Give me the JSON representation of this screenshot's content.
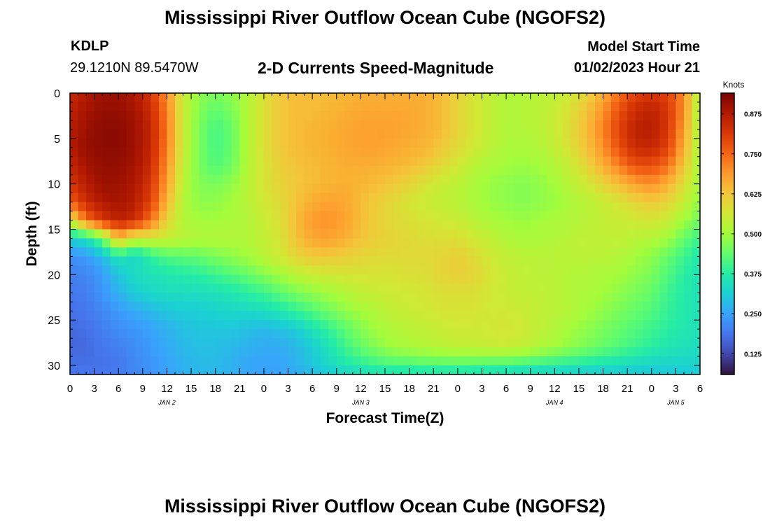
{
  "header": {
    "title": "Mississippi River Outflow Ocean Cube (NGOFS2)",
    "station_name": "KDLP",
    "station_coords": "29.1210N  89.5470W",
    "model_start_label": "Model Start Time",
    "model_start_value": "01/02/2023 Hour 21"
  },
  "footer": {
    "title": "Mississippi River Outflow Ocean Cube (NGOFS2)"
  },
  "chart_data": {
    "type": "heatmap",
    "title": "2-D Currents Speed-Magnitude",
    "xlabel": "Forecast Time(Z)",
    "ylabel": "Depth (ft)",
    "x_unit": "hours since Jan 2 00Z",
    "xlim": [
      0,
      78
    ],
    "ylim": [
      31,
      0
    ],
    "x_tick_values": [
      0,
      3,
      6,
      9,
      12,
      15,
      18,
      21,
      24,
      27,
      30,
      33,
      36,
      39,
      42,
      45,
      48,
      51,
      54,
      57,
      60,
      63,
      66,
      69,
      72,
      75,
      78
    ],
    "x_tick_labels": [
      "0",
      "3",
      "6",
      "9",
      "12",
      "15",
      "18",
      "21",
      "0",
      "3",
      "6",
      "9",
      "12",
      "15",
      "18",
      "21",
      "0",
      "3",
      "6",
      "9",
      "12",
      "15",
      "18",
      "21",
      "0",
      "3",
      "6"
    ],
    "y_ticks": [
      0,
      5,
      10,
      15,
      20,
      25,
      30
    ],
    "day_labels": [
      {
        "x": 12,
        "label": "JAN 2"
      },
      {
        "x": 36,
        "label": "JAN 3"
      },
      {
        "x": 60,
        "label": "JAN 4"
      },
      {
        "x": 75,
        "label": "JAN 5"
      }
    ],
    "colorbar": {
      "label": "Knots",
      "range": [
        0.06,
        0.94
      ],
      "ticks": [
        0.125,
        0.25,
        0.375,
        0.5,
        0.625,
        0.75,
        0.875
      ],
      "tick_labels": [
        "0.125",
        "0.250",
        "0.375",
        "0.500",
        "0.625",
        "0.750",
        "0.875"
      ],
      "colormap": [
        "#30123b",
        "#4145ab",
        "#4675ed",
        "#39a2fc",
        "#1bcfd4",
        "#24eca6",
        "#61fc6c",
        "#a4fc3b",
        "#d1e834",
        "#f3c63a",
        "#fe9b2d",
        "#f36315",
        "#d93806",
        "#b11901",
        "#7a0402"
      ]
    },
    "grid_x": [
      0,
      2,
      4,
      6,
      8,
      10,
      12,
      14,
      16,
      18,
      20,
      22,
      24,
      26,
      28,
      30,
      32,
      34,
      36,
      38,
      40,
      42,
      44,
      46,
      48,
      50,
      52,
      54,
      56,
      58,
      60,
      62,
      64,
      66,
      68,
      70,
      72,
      74,
      76,
      78
    ],
    "grid_depth": [
      0,
      2,
      4,
      6,
      8,
      10,
      12,
      14,
      16,
      18,
      20,
      22,
      24,
      26,
      28,
      30,
      31
    ],
    "speed_knots": [
      [
        0.84,
        0.88,
        0.9,
        0.9,
        0.88,
        0.82,
        0.7,
        0.55,
        0.48,
        0.46,
        0.48,
        0.52,
        0.58,
        0.62,
        0.64,
        0.64,
        0.64,
        0.65,
        0.66,
        0.66,
        0.66,
        0.66,
        0.66,
        0.64,
        0.6,
        0.57,
        0.54,
        0.52,
        0.52,
        0.53,
        0.54,
        0.56,
        0.6,
        0.66,
        0.74,
        0.8,
        0.82,
        0.8,
        0.7,
        0.5
      ],
      [
        0.86,
        0.89,
        0.91,
        0.91,
        0.89,
        0.84,
        0.72,
        0.55,
        0.47,
        0.43,
        0.46,
        0.52,
        0.58,
        0.62,
        0.64,
        0.64,
        0.65,
        0.66,
        0.67,
        0.67,
        0.67,
        0.67,
        0.66,
        0.64,
        0.6,
        0.57,
        0.54,
        0.52,
        0.52,
        0.53,
        0.55,
        0.58,
        0.63,
        0.7,
        0.78,
        0.84,
        0.86,
        0.82,
        0.7,
        0.5
      ],
      [
        0.87,
        0.9,
        0.92,
        0.92,
        0.9,
        0.85,
        0.73,
        0.55,
        0.46,
        0.41,
        0.44,
        0.52,
        0.58,
        0.62,
        0.64,
        0.65,
        0.66,
        0.67,
        0.68,
        0.68,
        0.68,
        0.67,
        0.66,
        0.64,
        0.6,
        0.57,
        0.54,
        0.52,
        0.52,
        0.53,
        0.55,
        0.59,
        0.64,
        0.72,
        0.8,
        0.86,
        0.87,
        0.82,
        0.68,
        0.5
      ],
      [
        0.87,
        0.91,
        0.92,
        0.92,
        0.9,
        0.85,
        0.72,
        0.55,
        0.46,
        0.41,
        0.44,
        0.52,
        0.58,
        0.62,
        0.64,
        0.65,
        0.66,
        0.67,
        0.68,
        0.68,
        0.67,
        0.66,
        0.65,
        0.62,
        0.59,
        0.56,
        0.53,
        0.51,
        0.51,
        0.52,
        0.54,
        0.58,
        0.63,
        0.7,
        0.78,
        0.84,
        0.85,
        0.8,
        0.66,
        0.5
      ],
      [
        0.85,
        0.89,
        0.91,
        0.91,
        0.89,
        0.84,
        0.7,
        0.54,
        0.46,
        0.42,
        0.45,
        0.52,
        0.57,
        0.61,
        0.63,
        0.64,
        0.65,
        0.66,
        0.66,
        0.66,
        0.65,
        0.64,
        0.62,
        0.59,
        0.56,
        0.53,
        0.51,
        0.5,
        0.49,
        0.5,
        0.52,
        0.55,
        0.6,
        0.66,
        0.72,
        0.78,
        0.78,
        0.74,
        0.62,
        0.5
      ],
      [
        0.82,
        0.87,
        0.9,
        0.9,
        0.88,
        0.82,
        0.68,
        0.53,
        0.47,
        0.46,
        0.48,
        0.53,
        0.57,
        0.6,
        0.62,
        0.64,
        0.65,
        0.66,
        0.65,
        0.64,
        0.62,
        0.6,
        0.57,
        0.55,
        0.53,
        0.51,
        0.49,
        0.48,
        0.47,
        0.48,
        0.5,
        0.53,
        0.56,
        0.6,
        0.64,
        0.68,
        0.7,
        0.66,
        0.58,
        0.5
      ],
      [
        0.76,
        0.84,
        0.88,
        0.89,
        0.87,
        0.8,
        0.65,
        0.52,
        0.48,
        0.48,
        0.5,
        0.53,
        0.56,
        0.59,
        0.63,
        0.66,
        0.68,
        0.67,
        0.64,
        0.61,
        0.59,
        0.57,
        0.55,
        0.54,
        0.53,
        0.51,
        0.49,
        0.48,
        0.47,
        0.48,
        0.49,
        0.51,
        0.53,
        0.55,
        0.57,
        0.6,
        0.62,
        0.6,
        0.55,
        0.48
      ],
      [
        0.56,
        0.74,
        0.82,
        0.86,
        0.84,
        0.74,
        0.6,
        0.52,
        0.5,
        0.5,
        0.51,
        0.52,
        0.55,
        0.58,
        0.64,
        0.69,
        0.7,
        0.68,
        0.64,
        0.61,
        0.59,
        0.58,
        0.57,
        0.56,
        0.55,
        0.53,
        0.51,
        0.5,
        0.49,
        0.5,
        0.51,
        0.52,
        0.53,
        0.54,
        0.55,
        0.56,
        0.57,
        0.55,
        0.5,
        0.45
      ],
      [
        0.32,
        0.34,
        0.45,
        0.65,
        0.55,
        0.56,
        0.55,
        0.53,
        0.52,
        0.52,
        0.52,
        0.52,
        0.54,
        0.57,
        0.63,
        0.67,
        0.68,
        0.66,
        0.63,
        0.61,
        0.6,
        0.59,
        0.58,
        0.58,
        0.58,
        0.56,
        0.54,
        0.52,
        0.51,
        0.51,
        0.52,
        0.53,
        0.54,
        0.54,
        0.54,
        0.53,
        0.52,
        0.5,
        0.44,
        0.4
      ],
      [
        0.22,
        0.24,
        0.28,
        0.36,
        0.32,
        0.38,
        0.42,
        0.43,
        0.44,
        0.46,
        0.48,
        0.5,
        0.53,
        0.56,
        0.6,
        0.62,
        0.62,
        0.61,
        0.6,
        0.59,
        0.59,
        0.59,
        0.59,
        0.6,
        0.61,
        0.59,
        0.56,
        0.54,
        0.53,
        0.53,
        0.53,
        0.53,
        0.53,
        0.53,
        0.52,
        0.5,
        0.48,
        0.44,
        0.4,
        0.36
      ],
      [
        0.2,
        0.21,
        0.24,
        0.3,
        0.34,
        0.35,
        0.36,
        0.37,
        0.38,
        0.4,
        0.42,
        0.44,
        0.47,
        0.5,
        0.53,
        0.55,
        0.56,
        0.57,
        0.57,
        0.57,
        0.57,
        0.58,
        0.58,
        0.6,
        0.61,
        0.6,
        0.57,
        0.55,
        0.54,
        0.53,
        0.53,
        0.52,
        0.52,
        0.51,
        0.5,
        0.48,
        0.46,
        0.42,
        0.38,
        0.35
      ],
      [
        0.19,
        0.2,
        0.23,
        0.27,
        0.31,
        0.33,
        0.34,
        0.34,
        0.34,
        0.35,
        0.36,
        0.38,
        0.4,
        0.43,
        0.46,
        0.48,
        0.5,
        0.52,
        0.54,
        0.55,
        0.56,
        0.56,
        0.57,
        0.58,
        0.58,
        0.58,
        0.56,
        0.55,
        0.54,
        0.54,
        0.53,
        0.52,
        0.51,
        0.5,
        0.48,
        0.46,
        0.44,
        0.4,
        0.37,
        0.35
      ],
      [
        0.18,
        0.19,
        0.21,
        0.24,
        0.26,
        0.28,
        0.3,
        0.31,
        0.31,
        0.32,
        0.33,
        0.33,
        0.34,
        0.36,
        0.39,
        0.42,
        0.45,
        0.48,
        0.5,
        0.52,
        0.54,
        0.55,
        0.56,
        0.57,
        0.57,
        0.57,
        0.56,
        0.56,
        0.55,
        0.54,
        0.53,
        0.52,
        0.5,
        0.48,
        0.46,
        0.44,
        0.42,
        0.39,
        0.37,
        0.35
      ],
      [
        0.17,
        0.18,
        0.2,
        0.22,
        0.23,
        0.25,
        0.27,
        0.29,
        0.3,
        0.3,
        0.3,
        0.29,
        0.28,
        0.29,
        0.31,
        0.35,
        0.39,
        0.43,
        0.47,
        0.5,
        0.52,
        0.53,
        0.54,
        0.55,
        0.56,
        0.56,
        0.56,
        0.57,
        0.56,
        0.54,
        0.52,
        0.5,
        0.48,
        0.46,
        0.44,
        0.42,
        0.4,
        0.38,
        0.36,
        0.35
      ],
      [
        0.17,
        0.17,
        0.19,
        0.2,
        0.22,
        0.24,
        0.26,
        0.28,
        0.29,
        0.29,
        0.28,
        0.27,
        0.26,
        0.26,
        0.28,
        0.31,
        0.35,
        0.4,
        0.44,
        0.47,
        0.5,
        0.51,
        0.52,
        0.53,
        0.54,
        0.54,
        0.55,
        0.55,
        0.54,
        0.52,
        0.5,
        0.48,
        0.46,
        0.44,
        0.42,
        0.4,
        0.38,
        0.36,
        0.35,
        0.34
      ],
      [
        0.18,
        0.18,
        0.18,
        0.19,
        0.21,
        0.23,
        0.25,
        0.27,
        0.28,
        0.28,
        0.27,
        0.25,
        0.25,
        0.25,
        0.27,
        0.3,
        0.33,
        0.36,
        0.38,
        0.4,
        0.41,
        0.41,
        0.42,
        0.42,
        0.42,
        0.42,
        0.41,
        0.41,
        0.4,
        0.39,
        0.38,
        0.37,
        0.36,
        0.35,
        0.34,
        0.33,
        0.32,
        0.32,
        0.32,
        0.32
      ],
      [
        0.19,
        0.19,
        0.19,
        0.2,
        0.21,
        0.23,
        0.25,
        0.27,
        0.28,
        0.28,
        0.27,
        0.26,
        0.25,
        0.25,
        0.26,
        0.28,
        0.3,
        0.32,
        0.33,
        0.34,
        0.34,
        0.34,
        0.34,
        0.34,
        0.34,
        0.33,
        0.33,
        0.32,
        0.32,
        0.31,
        0.31,
        0.3,
        0.3,
        0.3,
        0.3,
        0.3,
        0.3,
        0.3,
        0.3,
        0.3
      ]
    ]
  }
}
